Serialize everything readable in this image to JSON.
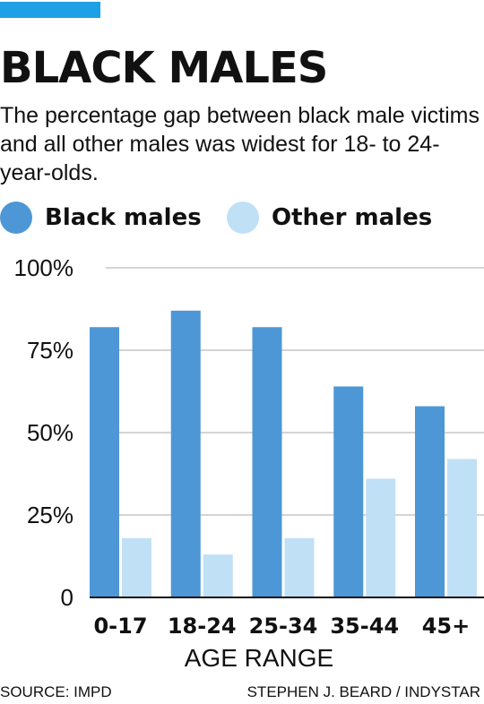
{
  "header": {
    "title": "BLACK MALES",
    "subtitle": "The percentage gap between black male victims and all other males was widest for 18- to 24-year-olds."
  },
  "legend": [
    {
      "label": "Black males",
      "color": "#4d97d6"
    },
    {
      "label": "Other males",
      "color": "#c0e0f6"
    }
  ],
  "colors": {
    "accent": "#1ea0e6",
    "grid": "#aaaaaa",
    "axis": "#111111"
  },
  "chart_data": {
    "type": "bar",
    "categories": [
      "0-17",
      "18-24",
      "25-34",
      "35-44",
      "45+"
    ],
    "series": [
      {
        "name": "Black males",
        "values": [
          82,
          87,
          82,
          64,
          58
        ]
      },
      {
        "name": "Other males",
        "values": [
          18,
          13,
          18,
          36,
          42
        ]
      }
    ],
    "xlabel": "AGE RANGE",
    "ylabel": "",
    "ylim": [
      0,
      100
    ],
    "yticks": [
      0,
      25,
      50,
      75,
      100
    ],
    "ytick_labels": [
      "0",
      "25%",
      "50%",
      "75%",
      "100%"
    ],
    "grid": true,
    "legend_position": "top"
  },
  "footer": {
    "source": "SOURCE: IMPD",
    "credit": "STEPHEN J. BEARD / INDYSTAR"
  }
}
